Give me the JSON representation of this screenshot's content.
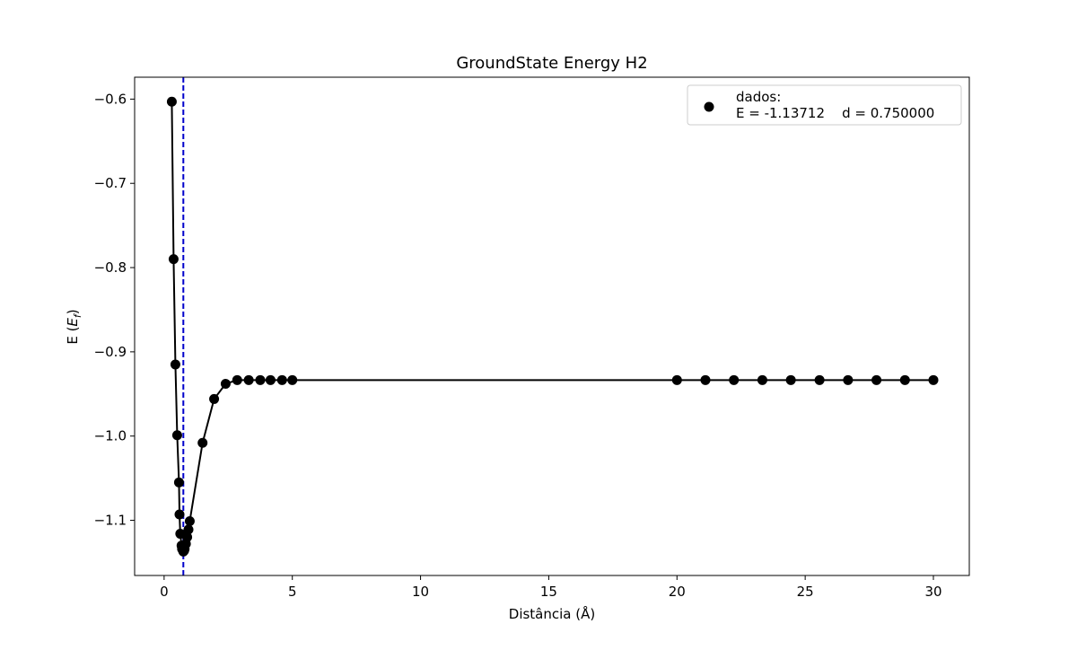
{
  "chart_data": {
    "type": "line",
    "title": "GroundState Energy H2",
    "xlabel": "Distância (Å)",
    "ylabel_prefix": "E (",
    "ylabel_symbol": "E",
    "ylabel_subscript": "f",
    "ylabel_suffix": ")",
    "xlim": [
      -1.15,
      31.4
    ],
    "ylim": [
      -1.1655,
      -0.574
    ],
    "xticks": [
      0,
      5,
      10,
      15,
      20,
      25,
      30
    ],
    "yticks": [
      -0.6,
      -0.7,
      -0.8,
      -0.9,
      -1.0,
      -1.1
    ],
    "xtick_labels": [
      "0",
      "5",
      "10",
      "15",
      "20",
      "25",
      "30"
    ],
    "ytick_labels": [
      "−0.6",
      "−0.7",
      "−0.8",
      "−0.9",
      "−1.0",
      "−1.1"
    ],
    "grid": false,
    "legend_position": "upper right",
    "legend_entry_name": "dados:",
    "legend_entry_detail": "E = -1.13712    d = 0.750000",
    "series": [
      {
        "name": "dados:",
        "color": "#000000",
        "marker": "circle",
        "x": [
          0.3,
          0.37,
          0.44,
          0.51,
          0.58,
          0.6,
          0.63,
          0.68,
          0.7,
          0.74,
          0.75,
          0.78,
          0.8,
          0.85,
          0.9,
          0.95,
          1.0,
          1.5,
          1.95,
          2.4,
          2.85,
          3.3,
          3.75,
          4.15,
          4.6,
          5.0,
          20.0,
          21.11,
          22.22,
          23.33,
          24.44,
          25.56,
          26.67,
          27.78,
          28.89,
          30.0
        ],
        "y": [
          -0.603,
          -0.79,
          -0.915,
          -0.999,
          -1.055,
          -1.093,
          -1.116,
          -1.13,
          -1.134,
          -1.136,
          -1.1371,
          -1.136,
          -1.134,
          -1.128,
          -1.12,
          -1.111,
          -1.101,
          -1.008,
          -0.956,
          -0.938,
          -0.9335,
          -0.9335,
          -0.9335,
          -0.9335,
          -0.9335,
          -0.9335,
          -0.9335,
          -0.9335,
          -0.9335,
          -0.9335,
          -0.9335,
          -0.9335,
          -0.9335,
          -0.9335,
          -0.9335,
          -0.9335
        ]
      }
    ],
    "reference_line": {
      "x": 0.75,
      "style": "dashed",
      "color": "#0000cc"
    }
  }
}
